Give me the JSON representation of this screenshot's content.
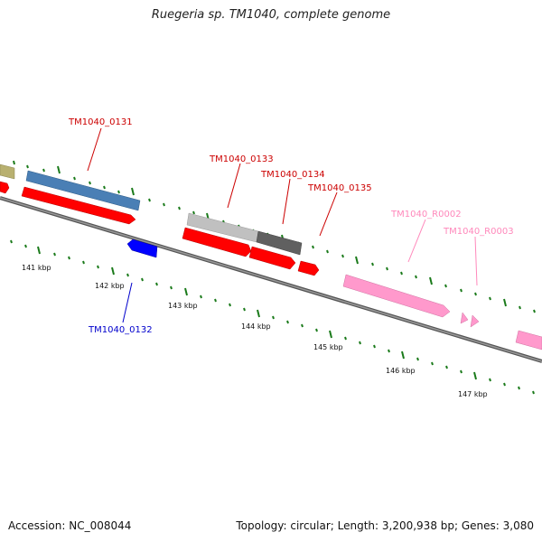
{
  "title": "Ruegeria sp. TM1040, complete genome",
  "footer": {
    "accession": "Accession: NC_008044",
    "summary": "Topology: circular; Length: 3,200,938 bp; Genes: 3,080"
  },
  "colors": {
    "forward_cds": "#ff0000",
    "reverse_cds": "#0000ff",
    "rna": "#ff99cc",
    "gene_blue": "#4a7fb5",
    "gene_gray_light": "#c0c0c0",
    "gene_gray_dark": "#606060",
    "gene_khaki": "#b8b070",
    "tick": "#1a7a1a"
  },
  "scale_labels": [
    "141 kbp",
    "142 kbp",
    "143 kbp",
    "144 kbp",
    "145 kbp",
    "146 kbp",
    "147 kbp"
  ],
  "gene_labels": {
    "g131": "TM1040_0131",
    "g132": "TM1040_0132",
    "g133": "TM1040_0133",
    "g134": "TM1040_0134",
    "g135": "TM1040_0135",
    "r2": "TM1040_R0002",
    "r3": "TM1040_R0003"
  }
}
